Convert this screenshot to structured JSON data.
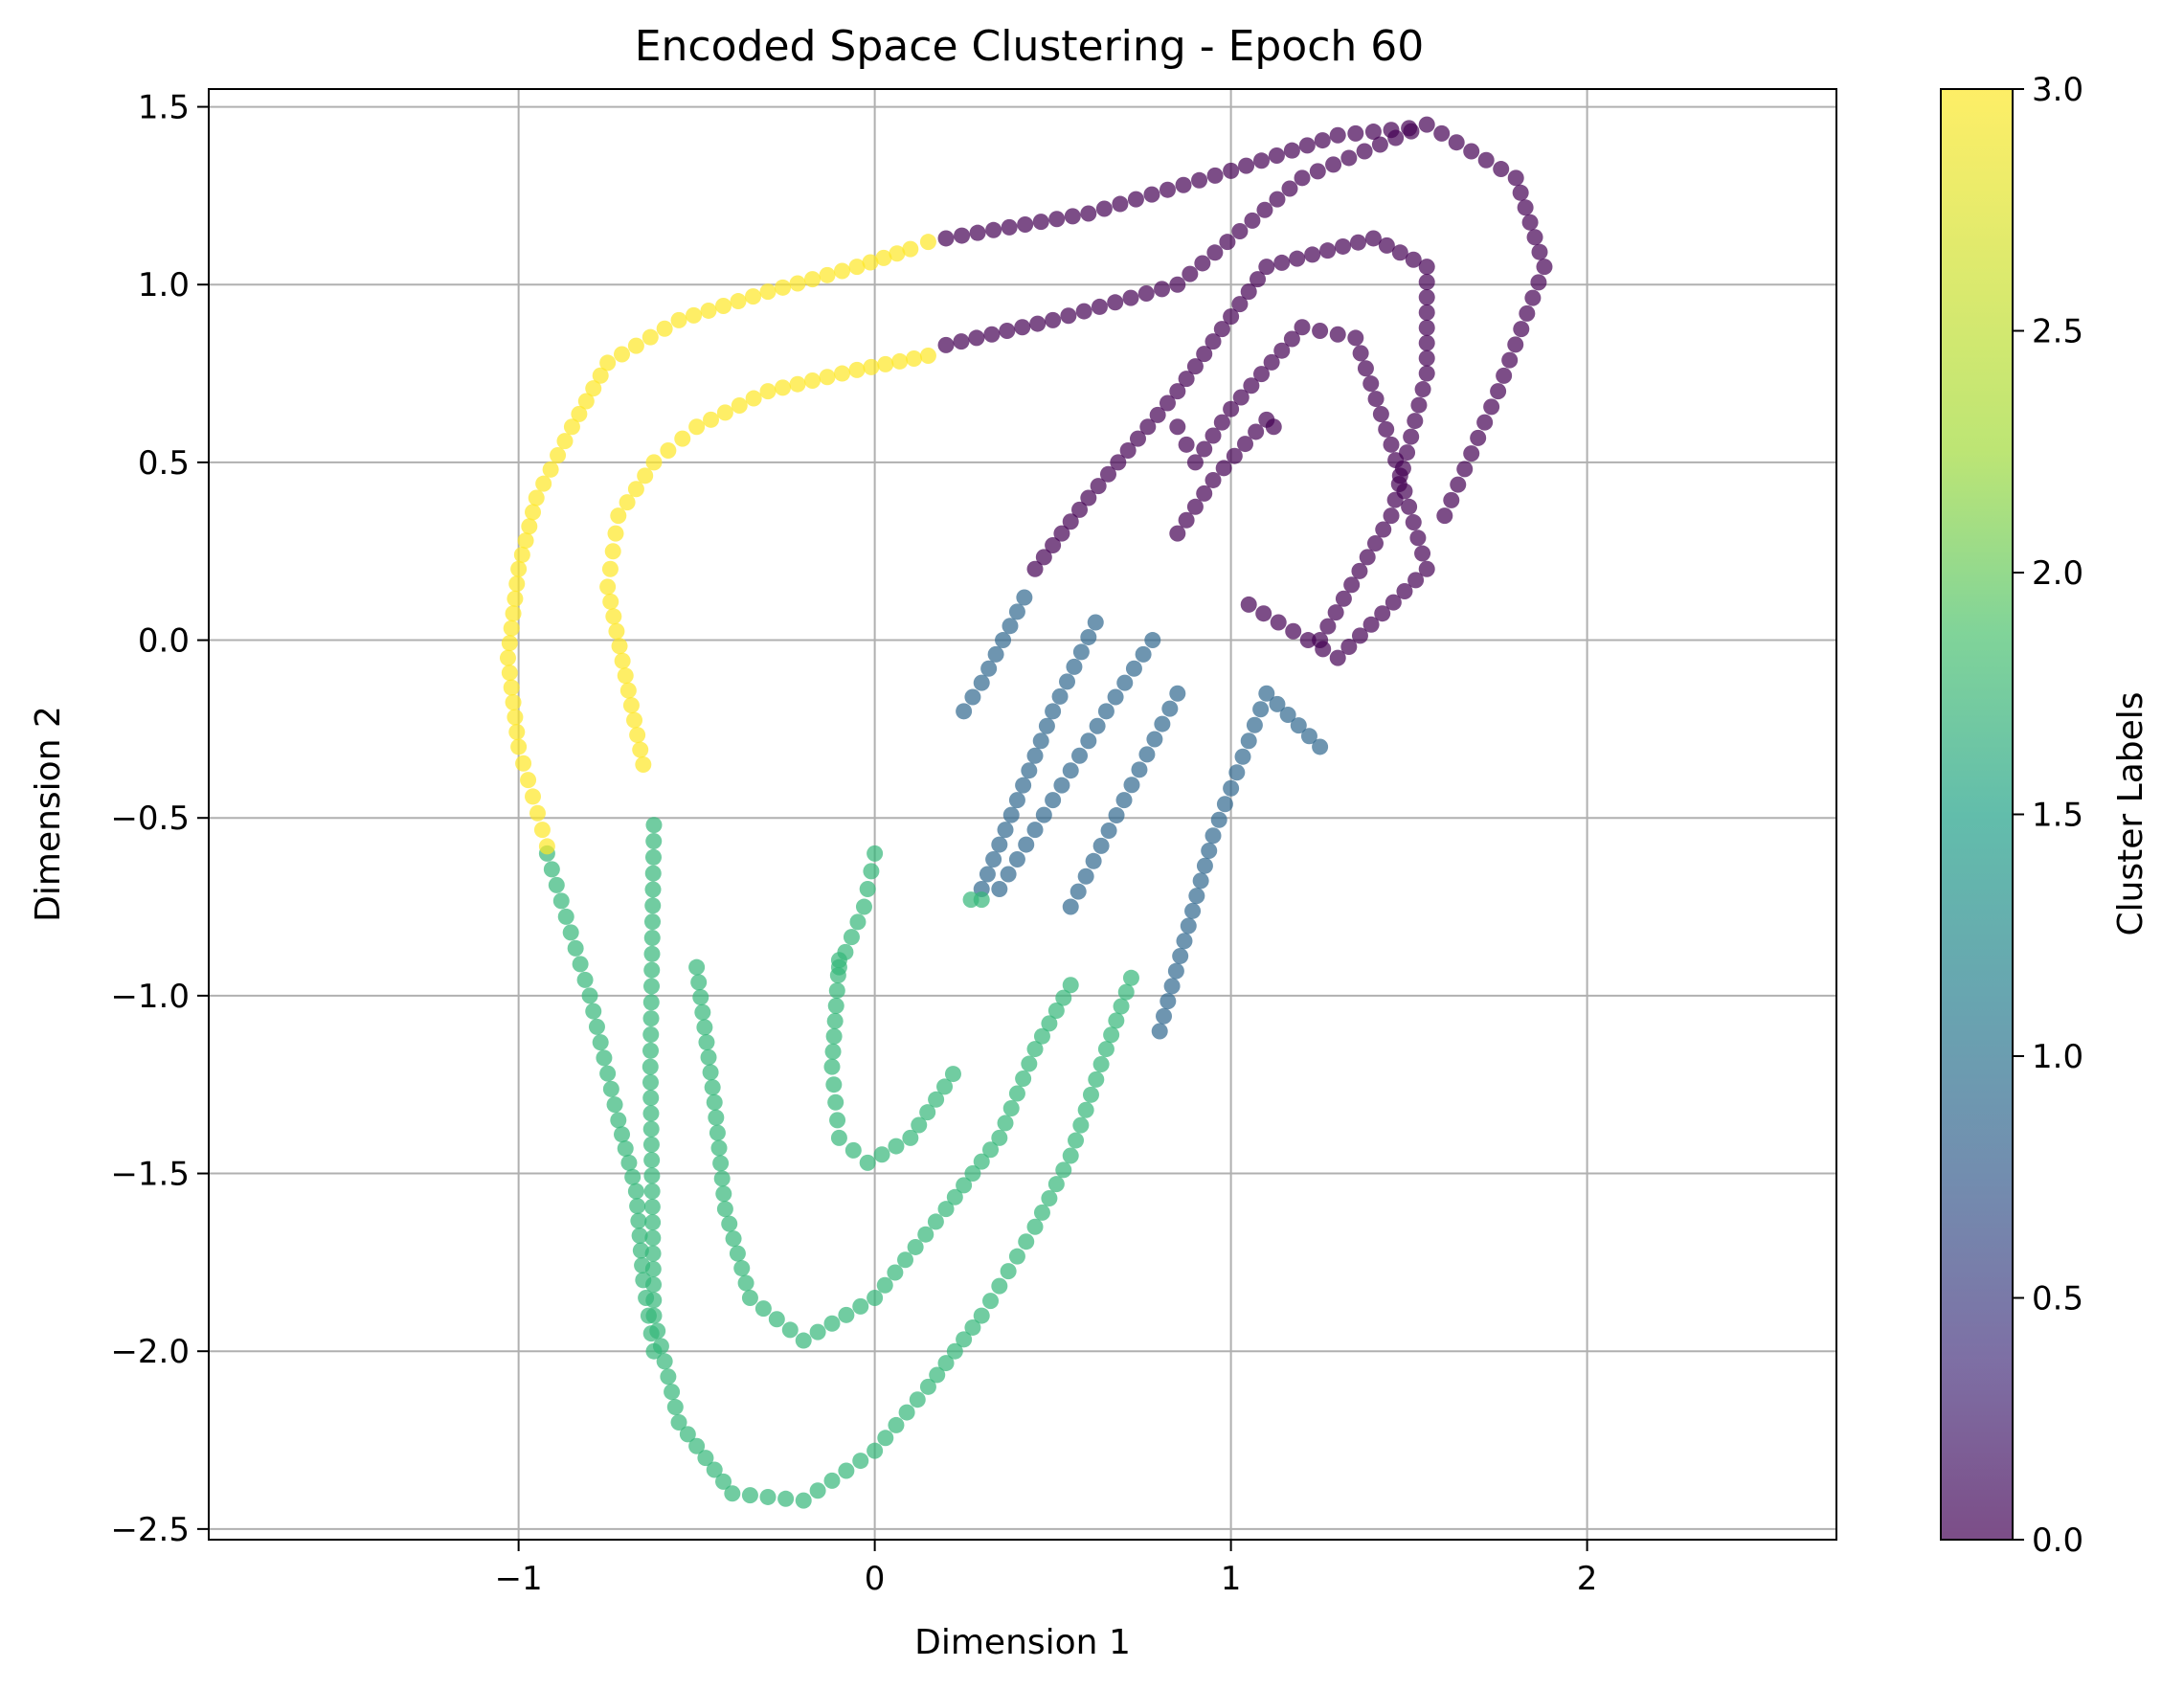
{
  "chart_data": {
    "type": "scatter",
    "title": "Encoded Space Clustering - Epoch 60",
    "xlabel": "Dimension 1",
    "ylabel": "Dimension 2",
    "xlim": [
      -1.87,
      2.7
    ],
    "ylim": [
      -2.53,
      1.55
    ],
    "xticks": [
      -1,
      0,
      1,
      2
    ],
    "xtick_labels": [
      "−1",
      "0",
      "1",
      "2"
    ],
    "yticks": [
      1.5,
      1.0,
      0.5,
      0.0,
      -0.5,
      -1.0,
      -1.5,
      -2.0,
      -2.5
    ],
    "ytick_labels": [
      "1.5",
      "1.0",
      "0.5",
      "0.0",
      "−0.5",
      "−1.0",
      "−1.5",
      "−2.0",
      "−2.5"
    ],
    "grid": true,
    "colorbar": {
      "label": "Cluster Labels",
      "range": [
        0.0,
        3.0
      ],
      "ticks": [
        0.0,
        0.5,
        1.0,
        1.5,
        2.0,
        2.5,
        3.0
      ],
      "tick_labels": [
        "0.0",
        "0.5",
        "1.0",
        "1.5",
        "2.0",
        "2.5",
        "3.0"
      ],
      "colormap": "viridis",
      "alpha": 0.7
    },
    "cluster_colors": {
      "0": "#440154",
      "1": "#31688e",
      "2": "#35b779",
      "3": "#fde725"
    },
    "curves": [
      {
        "cluster": 0,
        "points": [
          [
            0.85,
            0.6
          ],
          [
            0.9,
            0.5
          ],
          [
            1.0,
            0.65
          ],
          [
            1.2,
            0.88
          ],
          [
            1.35,
            0.85
          ],
          [
            1.45,
            0.55
          ],
          [
            1.55,
            0.2
          ],
          [
            1.3,
            -0.05
          ],
          [
            1.05,
            0.1
          ]
        ]
      },
      {
        "cluster": 0,
        "points": [
          [
            0.45,
            0.2
          ],
          [
            0.6,
            0.4
          ],
          [
            0.85,
            0.7
          ],
          [
            1.1,
            1.05
          ],
          [
            1.4,
            1.13
          ],
          [
            1.55,
            1.05
          ],
          [
            1.55,
            0.75
          ],
          [
            1.45,
            0.35
          ],
          [
            1.25,
            0.0
          ]
        ]
      },
      {
        "cluster": 0,
        "points": [
          [
            0.2,
            0.83
          ],
          [
            0.5,
            0.9
          ],
          [
            0.85,
            1.0
          ],
          [
            1.2,
            1.3
          ],
          [
            1.55,
            1.45
          ],
          [
            1.8,
            1.3
          ],
          [
            1.88,
            1.05
          ],
          [
            1.75,
            0.7
          ],
          [
            1.6,
            0.35
          ]
        ]
      },
      {
        "cluster": 0,
        "points": [
          [
            0.2,
            1.13
          ],
          [
            0.6,
            1.2
          ],
          [
            1.0,
            1.32
          ],
          [
            1.3,
            1.42
          ],
          [
            1.5,
            1.44
          ]
        ]
      },
      {
        "cluster": 0,
        "points": [
          [
            0.85,
            0.3
          ],
          [
            0.95,
            0.45
          ],
          [
            1.1,
            0.62
          ],
          [
            1.12,
            0.6
          ]
        ]
      },
      {
        "cluster": 1,
        "points": [
          [
            0.3,
            -0.7
          ],
          [
            0.4,
            -0.45
          ],
          [
            0.5,
            -0.2
          ],
          [
            0.62,
            0.05
          ]
        ]
      },
      {
        "cluster": 1,
        "points": [
          [
            0.35,
            -0.7
          ],
          [
            0.5,
            -0.45
          ],
          [
            0.65,
            -0.2
          ],
          [
            0.78,
            0.0
          ]
        ]
      },
      {
        "cluster": 1,
        "points": [
          [
            0.55,
            -0.75
          ],
          [
            0.7,
            -0.45
          ],
          [
            0.85,
            -0.15
          ]
        ]
      },
      {
        "cluster": 1,
        "points": [
          [
            0.8,
            -1.1
          ],
          [
            0.95,
            -0.55
          ],
          [
            1.1,
            -0.15
          ],
          [
            1.25,
            -0.3
          ]
        ]
      },
      {
        "cluster": 1,
        "points": [
          [
            0.25,
            -0.2
          ],
          [
            0.3,
            -0.12
          ],
          [
            0.42,
            0.12
          ]
        ]
      },
      {
        "cluster": 2,
        "points": [
          [
            -0.1,
            -0.9
          ],
          [
            -0.12,
            -1.2
          ],
          [
            -0.1,
            -1.4
          ],
          [
            -0.02,
            -1.47
          ],
          [
            0.1,
            -1.4
          ],
          [
            0.22,
            -1.22
          ]
        ]
      },
      {
        "cluster": 2,
        "points": [
          [
            -0.5,
            -0.92
          ],
          [
            -0.45,
            -1.3
          ],
          [
            -0.42,
            -1.6
          ],
          [
            -0.35,
            -1.85
          ],
          [
            -0.2,
            -1.97
          ],
          [
            0.0,
            -1.85
          ],
          [
            0.2,
            -1.6
          ],
          [
            0.35,
            -1.4
          ],
          [
            0.45,
            -1.15
          ],
          [
            0.55,
            -0.97
          ]
        ]
      },
      {
        "cluster": 2,
        "points": [
          [
            -0.62,
            -0.52
          ],
          [
            -0.63,
            -1.2
          ],
          [
            -0.62,
            -1.9
          ],
          [
            -0.55,
            -2.2
          ],
          [
            -0.4,
            -2.4
          ],
          [
            -0.2,
            -2.42
          ],
          [
            0.0,
            -2.28
          ],
          [
            0.15,
            -2.1
          ],
          [
            0.3,
            -1.9
          ],
          [
            0.45,
            -1.65
          ],
          [
            0.55,
            -1.45
          ],
          [
            0.65,
            -1.15
          ],
          [
            0.72,
            -0.95
          ]
        ]
      },
      {
        "cluster": 2,
        "points": [
          [
            -0.92,
            -0.6
          ],
          [
            -0.8,
            -1.0
          ],
          [
            -0.72,
            -1.35
          ],
          [
            -0.67,
            -1.55
          ],
          [
            -0.65,
            -1.8
          ],
          [
            -0.62,
            -2.0
          ]
        ]
      },
      {
        "cluster": 2,
        "points": [
          [
            0.0,
            -0.6
          ],
          [
            -0.03,
            -0.75
          ],
          [
            -0.1,
            -0.92
          ]
        ]
      },
      {
        "cluster": 2,
        "points": [
          [
            0.27,
            -0.73
          ],
          [
            0.3,
            -0.73
          ]
        ]
      },
      {
        "cluster": 3,
        "points": [
          [
            -0.65,
            -0.35
          ],
          [
            -0.7,
            -0.1
          ],
          [
            -0.75,
            0.15
          ],
          [
            -0.72,
            0.35
          ],
          [
            -0.62,
            0.5
          ],
          [
            -0.5,
            0.6
          ],
          [
            -0.3,
            0.7
          ],
          [
            -0.05,
            0.76
          ],
          [
            0.15,
            0.8
          ]
        ]
      },
      {
        "cluster": 3,
        "points": [
          [
            -0.92,
            -0.58
          ],
          [
            -1.0,
            -0.3
          ],
          [
            -1.03,
            -0.05
          ],
          [
            -1.0,
            0.2
          ],
          [
            -0.95,
            0.4
          ],
          [
            -0.85,
            0.6
          ],
          [
            -0.75,
            0.78
          ],
          [
            -0.55,
            0.9
          ],
          [
            -0.3,
            0.98
          ],
          [
            -0.05,
            1.05
          ],
          [
            0.1,
            1.1
          ],
          [
            0.15,
            1.12
          ]
        ]
      }
    ]
  }
}
